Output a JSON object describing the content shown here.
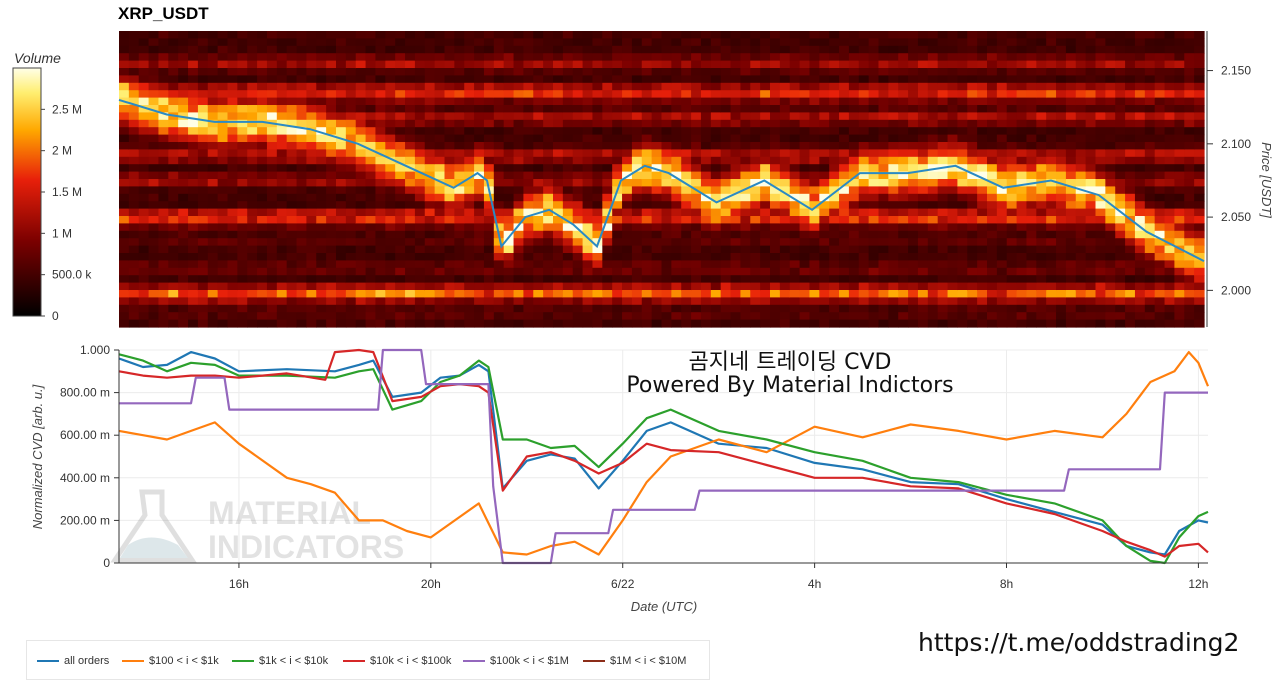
{
  "header": {
    "title": "XRP_USDT"
  },
  "watermark": {
    "line1": "MATERIAL",
    "line2": "INDICATORS"
  },
  "overlay": {
    "line1": "곰지네 트레이딩 CVD",
    "line2": "Powered By Material Indictors"
  },
  "footer": {
    "url": "https://t.me/oddstrading2"
  },
  "colorbar": {
    "title": "Volume",
    "ticks": [
      {
        "value": 2500000,
        "label": "2.5 M"
      },
      {
        "value": 2000000,
        "label": "2 M"
      },
      {
        "value": 1500000,
        "label": "1.5 M"
      },
      {
        "value": 1000000,
        "label": "1 M"
      },
      {
        "value": 500000,
        "label": "500.0 k"
      },
      {
        "value": 0,
        "label": "0"
      }
    ],
    "range": [
      0,
      3000000
    ]
  },
  "chart_data": [
    {
      "type": "heatmap",
      "title": "XRP_USDT",
      "ylabel": "Price [USDT]",
      "ylim": [
        1.975,
        2.177
      ],
      "x_range_hours": [
        13.5,
        36.2
      ],
      "y_ticks": [
        {
          "value": 2.0,
          "label": "2.000"
        },
        {
          "value": 2.05,
          "label": "2.050"
        },
        {
          "value": 2.1,
          "label": "2.100"
        },
        {
          "value": 2.15,
          "label": "2.150"
        }
      ],
      "bands": [
        {
          "price": 2.155,
          "level": 0.6
        },
        {
          "price": 2.135,
          "level": 0.85
        },
        {
          "price": 2.118,
          "level": 0.65
        },
        {
          "price": 2.092,
          "level": 0.7
        },
        {
          "price": 2.075,
          "level": 0.6
        },
        {
          "price": 2.05,
          "level": 0.9
        },
        {
          "price": 2.035,
          "level": 0.4
        },
        {
          "price": 2.015,
          "level": 0.45
        },
        {
          "price": 1.998,
          "level": 0.95
        },
        {
          "price": 1.985,
          "level": 0.4
        }
      ],
      "price_line": {
        "name": "Price",
        "x": [
          13.5,
          14.5,
          15.5,
          16.5,
          17.5,
          18.5,
          19.5,
          20.5,
          21.0,
          21.2,
          21.5,
          22.0,
          22.5,
          23.0,
          23.5,
          24.0,
          24.5,
          25.0,
          26.0,
          27.0,
          28.0,
          29.0,
          30.0,
          31.0,
          32.0,
          33.0,
          34.0,
          35.0,
          36.2
        ],
        "y": [
          2.13,
          2.12,
          2.115,
          2.115,
          2.11,
          2.1,
          2.085,
          2.07,
          2.08,
          2.075,
          2.03,
          2.05,
          2.055,
          2.045,
          2.03,
          2.075,
          2.085,
          2.08,
          2.06,
          2.075,
          2.055,
          2.08,
          2.08,
          2.085,
          2.07,
          2.075,
          2.065,
          2.04,
          2.02
        ]
      }
    },
    {
      "type": "line",
      "xlabel": "Date (UTC)",
      "ylabel": "Normalized CVD [arb. u.]",
      "ylim": [
        0,
        1000
      ],
      "x_range_hours": [
        13.5,
        36.2
      ],
      "y_ticks": [
        {
          "value": 0,
          "label": "0"
        },
        {
          "value": 200,
          "label": "200.00 m"
        },
        {
          "value": 400,
          "label": "400.00 m"
        },
        {
          "value": 600,
          "label": "600.00 m"
        },
        {
          "value": 800,
          "label": "800.00 m"
        },
        {
          "value": 1000,
          "label": "1.000"
        }
      ],
      "x_ticks": [
        {
          "value": 16,
          "label": "16h"
        },
        {
          "value": 20,
          "label": "20h"
        },
        {
          "value": 24,
          "label": "6/22"
        },
        {
          "value": 28,
          "label": "4h"
        },
        {
          "value": 32,
          "label": "8h"
        },
        {
          "value": 36,
          "label": "12h"
        }
      ],
      "series": [
        {
          "name": "all orders",
          "color": "#1f77b4",
          "x": [
            13.5,
            14.0,
            14.5,
            15.0,
            15.5,
            16.0,
            17.0,
            18.0,
            18.5,
            18.8,
            19.2,
            19.8,
            20.2,
            20.6,
            21.0,
            21.2,
            21.5,
            22.0,
            22.5,
            23.0,
            23.5,
            24.0,
            24.5,
            25.0,
            26.0,
            27.0,
            28.0,
            29.0,
            30.0,
            31.0,
            32.0,
            33.0,
            34.0,
            34.5,
            35.0,
            35.3,
            35.6,
            36.0,
            36.2
          ],
          "y": [
            960,
            920,
            930,
            990,
            960,
            900,
            910,
            900,
            930,
            950,
            780,
            800,
            870,
            880,
            930,
            900,
            350,
            480,
            510,
            490,
            350,
            480,
            620,
            660,
            560,
            540,
            470,
            440,
            380,
            370,
            300,
            240,
            180,
            80,
            50,
            40,
            150,
            200,
            190
          ]
        },
        {
          "name": "$100 < i < $1k",
          "color": "#ff7f0e",
          "x": [
            13.5,
            14.0,
            14.5,
            15.0,
            15.5,
            16.0,
            17.0,
            17.5,
            18.0,
            18.5,
            19.0,
            19.5,
            20.0,
            20.5,
            21.0,
            21.5,
            22.0,
            22.5,
            23.0,
            23.5,
            24.0,
            24.5,
            25.0,
            26.0,
            27.0,
            28.0,
            29.0,
            30.0,
            31.0,
            32.0,
            33.0,
            34.0,
            34.5,
            35.0,
            35.5,
            35.8,
            36.0,
            36.2
          ],
          "y": [
            620,
            600,
            580,
            620,
            660,
            560,
            400,
            370,
            330,
            200,
            200,
            150,
            120,
            200,
            280,
            50,
            40,
            80,
            100,
            40,
            200,
            380,
            500,
            580,
            520,
            640,
            590,
            650,
            620,
            580,
            620,
            590,
            700,
            850,
            900,
            990,
            940,
            830
          ]
        },
        {
          "name": "$1k < i < $10k",
          "color": "#2ca02c",
          "x": [
            13.5,
            14.0,
            14.5,
            15.0,
            15.5,
            16.0,
            17.0,
            18.0,
            18.5,
            18.8,
            19.2,
            19.8,
            20.2,
            20.6,
            21.0,
            21.2,
            21.5,
            22.0,
            22.5,
            23.0,
            23.5,
            24.0,
            24.5,
            25.0,
            26.0,
            27.0,
            28.0,
            29.0,
            30.0,
            31.0,
            32.0,
            33.0,
            34.0,
            34.5,
            35.0,
            35.3,
            35.6,
            36.0,
            36.2
          ],
          "y": [
            980,
            950,
            900,
            940,
            930,
            880,
            880,
            870,
            900,
            910,
            720,
            760,
            850,
            880,
            950,
            920,
            580,
            580,
            540,
            550,
            450,
            560,
            680,
            720,
            620,
            580,
            520,
            480,
            400,
            380,
            320,
            280,
            200,
            80,
            10,
            0,
            120,
            220,
            240
          ]
        },
        {
          "name": "$10k < i < $100k",
          "color": "#d62728",
          "x": [
            13.5,
            14.0,
            14.5,
            15.0,
            15.5,
            16.0,
            17.0,
            17.8,
            18.0,
            18.5,
            18.8,
            19.2,
            19.8,
            20.2,
            20.6,
            21.0,
            21.2,
            21.5,
            22.0,
            22.5,
            23.0,
            23.5,
            24.0,
            24.5,
            25.0,
            26.0,
            27.0,
            28.0,
            29.0,
            30.0,
            31.0,
            32.0,
            33.0,
            34.0,
            34.5,
            35.0,
            35.3,
            35.6,
            36.0,
            36.2
          ],
          "y": [
            900,
            880,
            870,
            880,
            880,
            870,
            890,
            860,
            990,
            1000,
            990,
            760,
            780,
            830,
            840,
            830,
            800,
            340,
            500,
            520,
            480,
            420,
            470,
            560,
            530,
            520,
            460,
            400,
            400,
            360,
            350,
            280,
            230,
            150,
            100,
            60,
            30,
            80,
            90,
            50
          ]
        },
        {
          "name": "$100k < i < $1M",
          "color": "#9467bd",
          "x": [
            13.5,
            15.0,
            15.1,
            15.7,
            15.8,
            18.9,
            19.0,
            19.8,
            19.9,
            21.2,
            21.3,
            21.5,
            22.5,
            22.6,
            23.7,
            23.8,
            24.3,
            24.4,
            25.5,
            25.6,
            33.2,
            33.3,
            35.2,
            35.3,
            36.2
          ],
          "y": [
            750,
            750,
            870,
            870,
            720,
            720,
            1000,
            1000,
            840,
            840,
            360,
            0,
            0,
            140,
            140,
            250,
            250,
            250,
            250,
            340,
            340,
            440,
            440,
            800,
            800
          ]
        },
        {
          "name": "$1M < i < $10M",
          "color": "#8c2d19",
          "x": [],
          "y": []
        }
      ]
    }
  ]
}
